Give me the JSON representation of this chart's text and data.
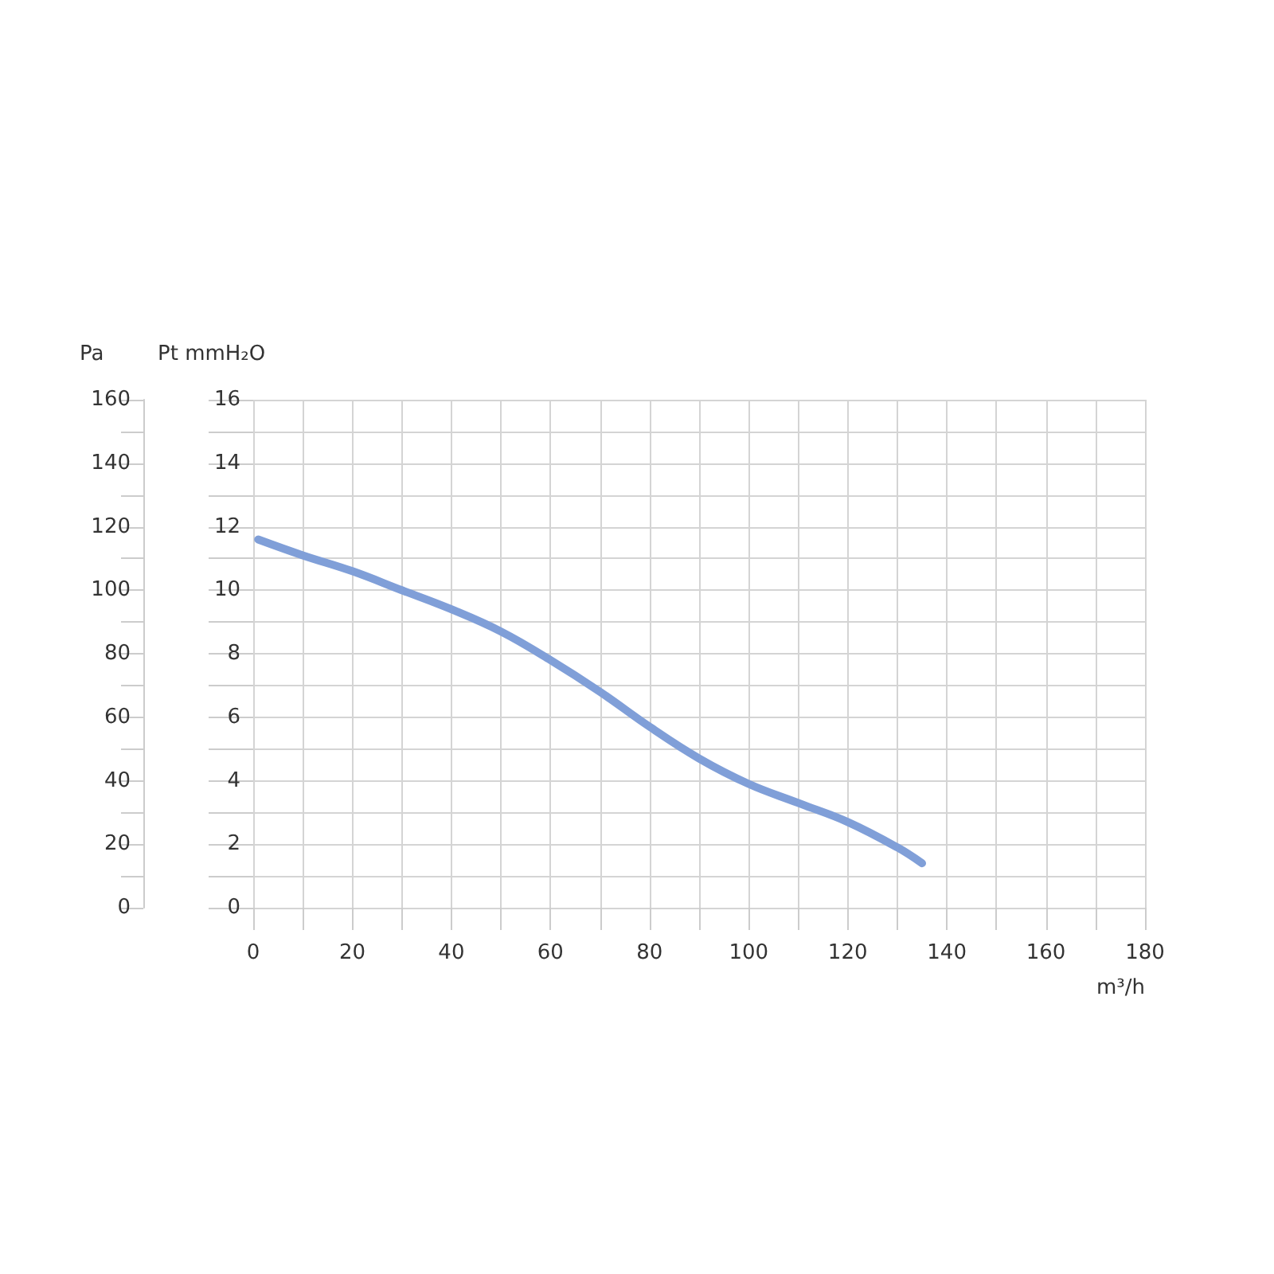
{
  "chart_data": {
    "type": "line",
    "xlabel": "m³/h",
    "ylabel": "Pt mmH₂O",
    "y2label": "Pa",
    "x": [
      1,
      10,
      20,
      30,
      40,
      50,
      60,
      70,
      80,
      90,
      100,
      110,
      120,
      130,
      135
    ],
    "series": [
      {
        "color": "#809fd8",
        "values": [
          11.6,
          11.1,
          10.6,
          10.0,
          9.4,
          8.7,
          7.8,
          6.8,
          5.7,
          4.7,
          3.9,
          3.3,
          2.7,
          1.9,
          1.4
        ]
      }
    ],
    "xlim": [
      0,
      180
    ],
    "xticks": [
      0,
      {
        "value": 10,
        "label": null
      },
      20,
      {
        "value": 30,
        "label": null
      },
      40,
      {
        "value": 50,
        "label": null
      },
      60,
      {
        "value": 70,
        "label": null
      },
      80,
      {
        "value": 90,
        "label": null
      },
      100,
      {
        "value": 110,
        "label": null
      },
      120,
      {
        "value": 130,
        "label": null
      },
      140,
      {
        "value": 150,
        "label": null
      },
      160,
      {
        "value": 170,
        "label": null
      },
      180
    ],
    "ylim": [
      0,
      16
    ],
    "yticks": [
      0,
      {
        "value": 1,
        "label": null
      },
      2,
      {
        "value": 3,
        "label": null
      },
      4,
      {
        "value": 5,
        "label": null
      },
      6,
      {
        "value": 7,
        "label": null
      },
      8,
      {
        "value": 9,
        "label": null
      },
      10,
      {
        "value": 11,
        "label": null
      },
      12,
      {
        "value": 13,
        "label": null
      },
      14,
      {
        "value": 15,
        "label": null
      },
      16
    ],
    "y2lim": [
      0,
      160
    ],
    "y2ticks": [
      0,
      {
        "value": 10,
        "label": null
      },
      20,
      {
        "value": 30,
        "label": null
      },
      40,
      {
        "value": 50,
        "label": null
      },
      60,
      {
        "value": 70,
        "label": null
      },
      80,
      {
        "value": 90,
        "label": null
      },
      100,
      {
        "value": 110,
        "label": null
      },
      120,
      {
        "value": 130,
        "label": null
      },
      140,
      {
        "value": 150,
        "label": null
      },
      160
    ],
    "grid": true,
    "marker": "none",
    "line_style": "solid"
  }
}
